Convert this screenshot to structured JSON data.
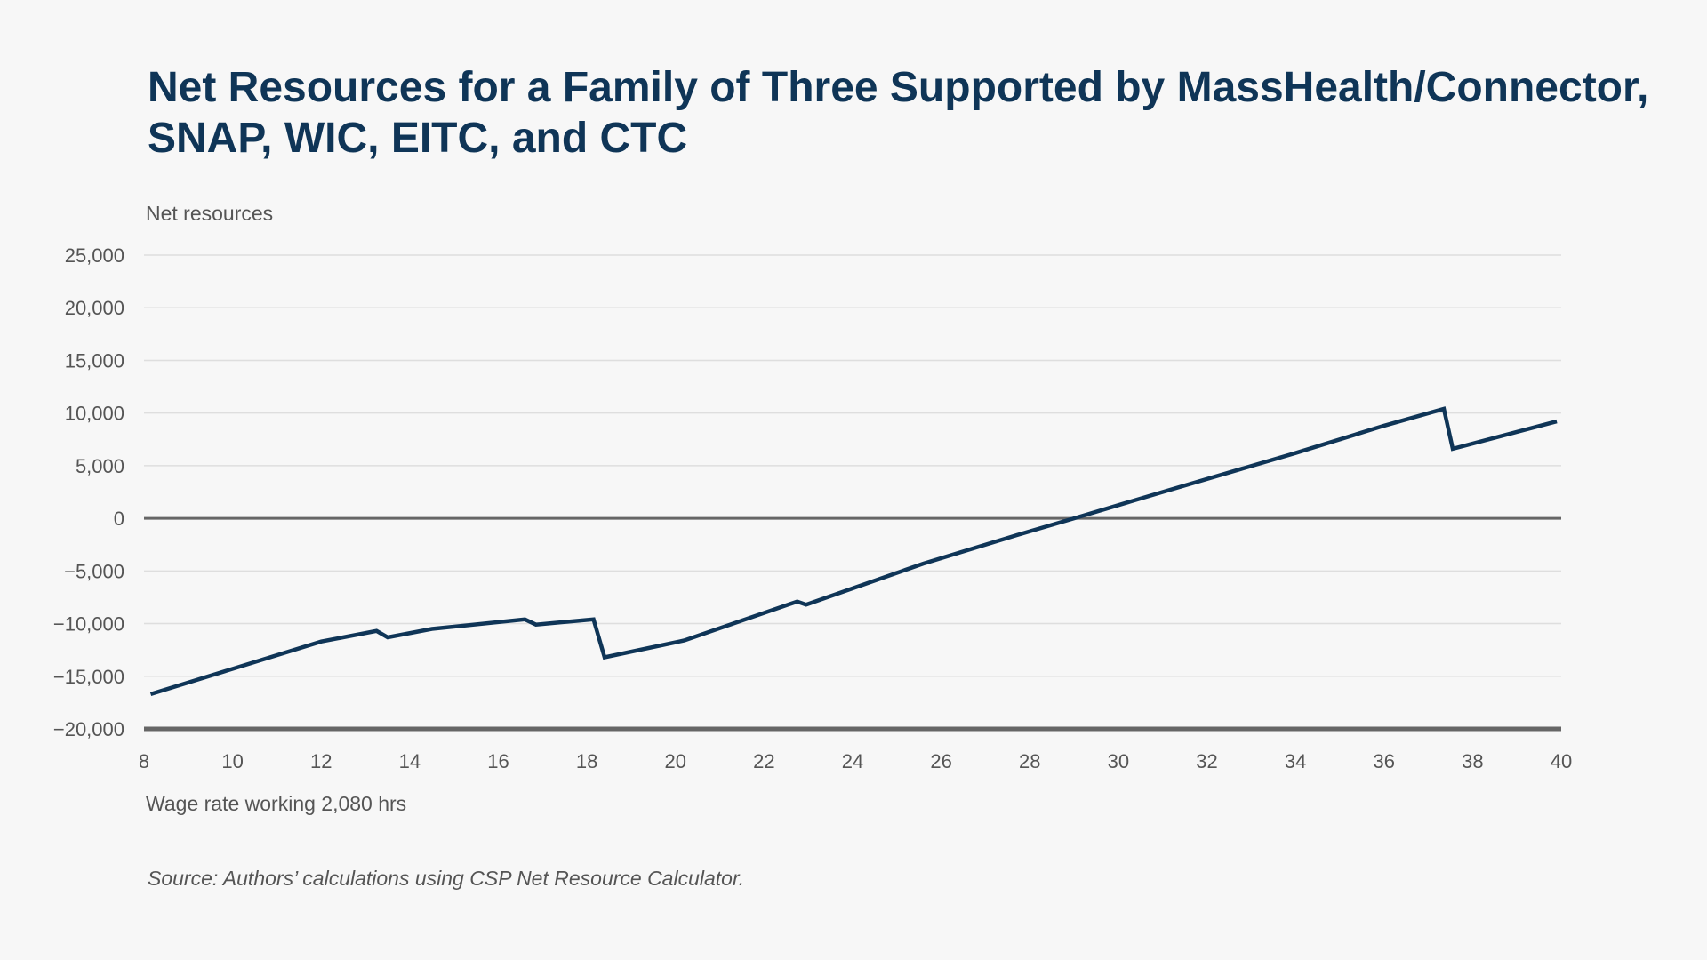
{
  "chart_data": {
    "type": "line",
    "title": "Net Resources for a Family of Three Supported by MassHealth/Connector, SNAP, WIC, EITC, and CTC",
    "ylabel": "Net resources",
    "xlabel": "Wage rate working 2,080 hrs",
    "source": "Source: Authors’ calculations using CSP Net Resource Calculator.",
    "xlim": [
      8,
      40
    ],
    "ylim": [
      -20000,
      25000
    ],
    "x_ticks": [
      8,
      10,
      12,
      14,
      16,
      18,
      20,
      22,
      24,
      26,
      28,
      30,
      32,
      34,
      36,
      38,
      40
    ],
    "x_tick_labels": [
      "8",
      "10",
      "12",
      "14",
      "16",
      "18",
      "20",
      "22",
      "24",
      "26",
      "28",
      "30",
      "32",
      "34",
      "36",
      "38",
      "40"
    ],
    "y_ticks": [
      25000,
      20000,
      15000,
      10000,
      5000,
      0,
      -5000,
      -10000,
      -15000,
      -20000
    ],
    "y_tick_labels": [
      "25,000",
      "20,000",
      "15,000",
      "10,000",
      "5,000",
      "0",
      "−5,000",
      "−10,000",
      "−15,000",
      "−20,000"
    ],
    "grid": true,
    "legend": "none",
    "series": [
      {
        "color": "#0f3557",
        "x": [
          8.15,
          12.0,
          13.25,
          13.5,
          14.5,
          16.6,
          16.85,
          18.15,
          18.4,
          20.2,
          22.75,
          22.95,
          25.6,
          27.7,
          29.0,
          31.0,
          34.0,
          36.0,
          37.35,
          37.55,
          39.9
        ],
        "y": [
          -16700,
          -11700,
          -10700,
          -11300,
          -10500,
          -9600,
          -10100,
          -9600,
          -13200,
          -11600,
          -7900,
          -8200,
          -4300,
          -1600,
          0,
          2500,
          6200,
          8800,
          10400,
          6600,
          9200
        ]
      }
    ],
    "colors": {
      "zero_line": "#666666",
      "baseline": "#666666",
      "gridline": "#dedede"
    }
  }
}
